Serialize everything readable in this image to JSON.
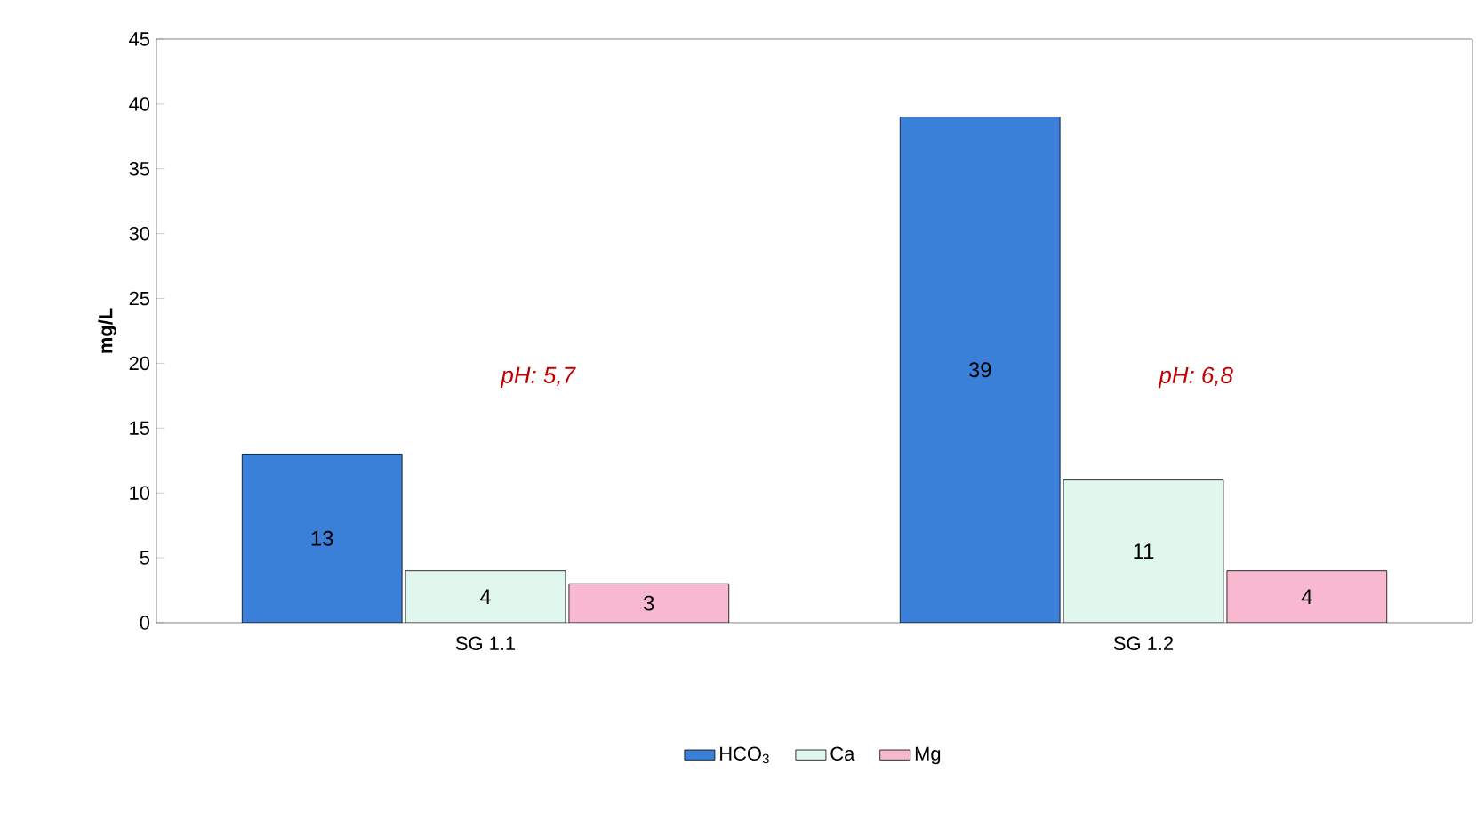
{
  "chart_data": {
    "type": "bar",
    "ylabel": "mg/L",
    "categories": [
      "SG 1.1",
      "SG 1.2"
    ],
    "series": [
      {
        "name": "HCO$_{3}$",
        "color": "#3a7fd8",
        "values": [
          13,
          39
        ]
      },
      {
        "name": "Ca",
        "color": "#e0f7ee",
        "values": [
          4,
          11
        ]
      },
      {
        "name": "Mg",
        "color": "#f7b8d0",
        "values": [
          3,
          4
        ]
      }
    ],
    "ylim": [
      0,
      45
    ],
    "yticks": [
      0,
      5,
      10,
      15,
      20,
      25,
      30,
      35,
      40,
      45
    ],
    "data_labels": true,
    "legend": "bottom",
    "grid": false,
    "annotations": [
      "pH: 5,7",
      "pH: 6,8"
    ]
  }
}
